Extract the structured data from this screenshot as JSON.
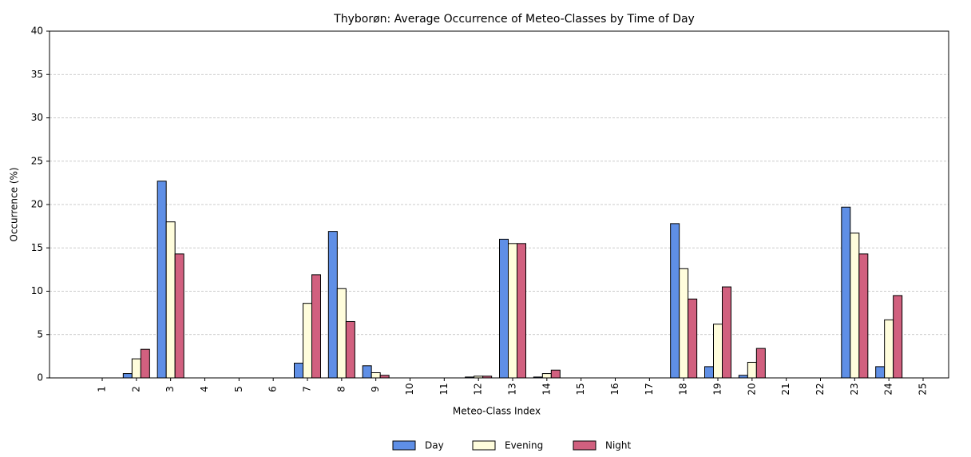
{
  "chart_data": {
    "type": "bar",
    "title": "Thyborøn: Average Occurrence of Meteo-Classes by Time of Day",
    "x_label": "Meteo-Class Index",
    "y_label": "Occurrence (%)",
    "categories": [
      "1",
      "2",
      "3",
      "4",
      "5",
      "6",
      "7",
      "8",
      "9",
      "10",
      "11",
      "12",
      "13",
      "14",
      "15",
      "16",
      "17",
      "18",
      "19",
      "20",
      "21",
      "22",
      "23",
      "24",
      "25"
    ],
    "series": [
      {
        "name": "Day",
        "color": "#5f8fe6",
        "values": [
          0,
          0.5,
          22.7,
          0,
          0,
          0,
          1.7,
          16.9,
          1.4,
          0,
          0,
          0.1,
          16.0,
          0.1,
          0,
          0,
          0,
          17.8,
          1.3,
          0.3,
          0,
          0,
          19.7,
          1.3,
          0
        ]
      },
      {
        "name": "Evening",
        "color": "#fffddc",
        "values": [
          0,
          2.2,
          18.0,
          0,
          0,
          0,
          8.6,
          10.3,
          0.6,
          0,
          0,
          0.2,
          15.5,
          0.5,
          0,
          0,
          0,
          12.6,
          6.2,
          1.8,
          0,
          0,
          16.7,
          6.7,
          0
        ]
      },
      {
        "name": "Night",
        "color": "#d1607f",
        "values": [
          0,
          3.3,
          14.3,
          0,
          0,
          0,
          11.9,
          6.5,
          0.3,
          0,
          0,
          0.2,
          15.5,
          0.9,
          0,
          0,
          0,
          9.1,
          10.5,
          3.4,
          0,
          0,
          14.3,
          9.5,
          0
        ]
      }
    ],
    "ylim": [
      0,
      40
    ],
    "yticks": [
      0,
      5,
      10,
      15,
      20,
      25,
      30,
      35,
      40
    ],
    "grid": true,
    "legend": "bottom"
  }
}
